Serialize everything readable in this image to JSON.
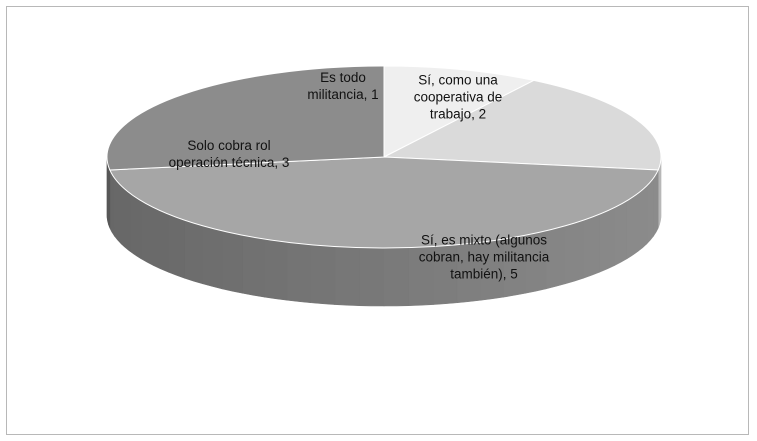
{
  "chart_data": {
    "type": "pie",
    "is_3d": true,
    "title": "",
    "legend": "none",
    "slices": [
      {
        "label": "Es todo\nmilitancia, 1",
        "value": 1,
        "color": "#efefef"
      },
      {
        "label": "Sí, como una\ncooperativa de\ntrabajo, 2",
        "value": 2,
        "color": "#dadada"
      },
      {
        "label": "Sí, es mixto (algunos\ncobran, hay militancia\ntambién), 5",
        "value": 5,
        "color": "#a6a6a6"
      },
      {
        "label": "Solo cobra rol\noperación técnica, 3",
        "value": 3,
        "color": "#8c8c8c"
      }
    ]
  }
}
